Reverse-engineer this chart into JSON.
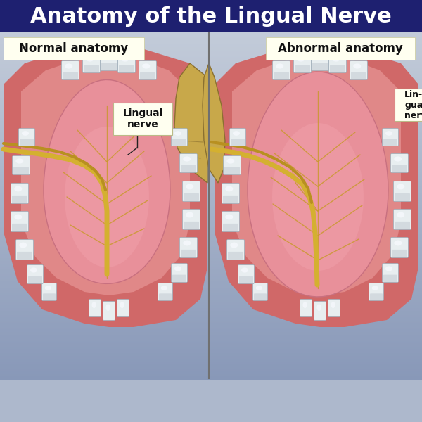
{
  "title": "Anatomy of the Lingual Nerve",
  "title_bg_top": "#1e2070",
  "title_bg_bot": "#2a2a8a",
  "title_color": "#ffffff",
  "title_fontsize": 22,
  "body_bg": "#adb8cc",
  "panel_left_label": "Normal anatomy",
  "panel_right_label": "Abnormal anatomy",
  "label_bg": "#fffff0",
  "label_fontsize": 12,
  "annotation_label": "Lingual\nnerve",
  "annotation_bg": "#fffff0",
  "nerve_color": "#d4b030",
  "nerve_branch_color": "#c89828",
  "tongue_top_color": "#e8909a",
  "tongue_mid_color": "#e07a84",
  "gum_color": "#e08878",
  "jaw_color": "#d47870",
  "bone_color": "#c8a84a",
  "bone_shadow": "#8a7030",
  "tooth_color": "#e8eef0",
  "tooth_shine": "#f8faff",
  "tooth_shadow": "#c0c8d0",
  "divider_color": "#707070",
  "bg_grad_top": "#8898b8",
  "bg_grad_bot": "#c8d0dc"
}
